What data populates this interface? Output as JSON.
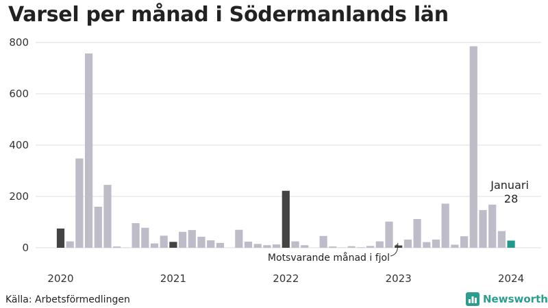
{
  "title": "Varsel per månad i Södermanlands län",
  "source": "Källa: Arbetsförmedlingen",
  "brand": {
    "name": "Newsworthy",
    "icon": "bar-chart-logo-icon",
    "color": "#2a9d8f"
  },
  "colors": {
    "bar": "#bebcc8",
    "january": "#434343",
    "highlight": "#219a8c",
    "grid": "#dddddd"
  },
  "chart_data": {
    "type": "bar",
    "title": "Varsel per månad i Södermanlands län",
    "ylim": [
      0,
      800
    ],
    "y_ticks": [
      0,
      200,
      400,
      600,
      800
    ],
    "x_tick_labels": [
      {
        "label": "2020",
        "index": 0
      },
      {
        "label": "2021",
        "index": 12
      },
      {
        "label": "2022",
        "index": 24
      },
      {
        "label": "2023",
        "index": 36
      },
      {
        "label": "2024",
        "index": 48
      }
    ],
    "grid": true,
    "values": [
      75,
      25,
      348,
      757,
      160,
      245,
      5,
      1,
      96,
      78,
      17,
      47,
      23,
      62,
      69,
      43,
      29,
      19,
      0,
      70,
      24,
      15,
      10,
      13,
      222,
      25,
      10,
      0,
      46,
      5,
      1,
      6,
      2,
      7,
      25,
      102,
      9,
      32,
      112,
      22,
      32,
      172,
      12,
      45,
      785,
      147,
      168,
      65,
      28
    ],
    "highlight_index": 48,
    "comparison_index": 36,
    "annotations": [
      {
        "label": "Januari",
        "value": "28",
        "index": 48
      },
      {
        "label": "Motsvarande månad i fjol",
        "index": 36
      }
    ]
  }
}
